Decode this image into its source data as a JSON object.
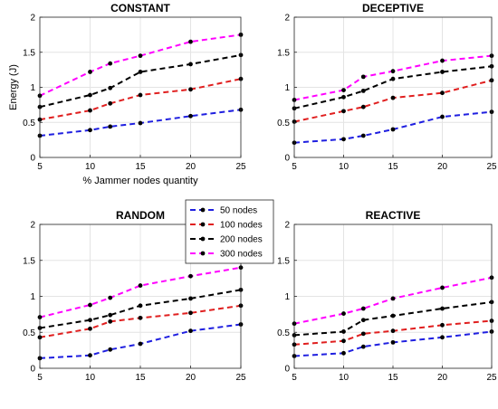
{
  "chart_data": {
    "type": "line",
    "x": [
      5,
      10,
      12,
      15,
      20,
      25
    ],
    "xlim": [
      5,
      25
    ],
    "ylim": [
      0,
      2
    ],
    "xticks": [
      "5",
      "10",
      "15",
      "20",
      "25"
    ],
    "yticks": [
      "0",
      "0.5",
      "1",
      "1.5",
      "2"
    ],
    "grid": true,
    "legend": {
      "placement": "center",
      "entries": [
        "50 nodes",
        "100 nodes",
        "200 nodes",
        "300 nodes"
      ]
    },
    "series_colors": [
      "#1f1fe0",
      "#e01f1f",
      "#000000",
      "#ff00ff"
    ],
    "panels": [
      {
        "title": "CONSTANT",
        "xlabel": "% Jammer nodes quantity",
        "ylabel": "Energy (J)",
        "series": [
          {
            "name": "50 nodes",
            "values": [
              0.31,
              0.39,
              0.44,
              0.49,
              0.59,
              0.68
            ]
          },
          {
            "name": "100 nodes",
            "values": [
              0.54,
              0.67,
              0.77,
              0.89,
              0.97,
              1.12
            ]
          },
          {
            "name": "200 nodes",
            "values": [
              0.72,
              0.89,
              0.99,
              1.22,
              1.33,
              1.46
            ]
          },
          {
            "name": "300 nodes",
            "values": [
              0.88,
              1.22,
              1.34,
              1.45,
              1.65,
              1.75
            ]
          }
        ]
      },
      {
        "title": "DECEPTIVE",
        "xlabel": "",
        "ylabel": "",
        "series": [
          {
            "name": "50 nodes",
            "values": [
              0.21,
              0.26,
              0.31,
              0.4,
              0.58,
              0.65
            ]
          },
          {
            "name": "100 nodes",
            "values": [
              0.51,
              0.66,
              0.72,
              0.85,
              0.92,
              1.1
            ]
          },
          {
            "name": "200 nodes",
            "values": [
              0.7,
              0.86,
              0.95,
              1.12,
              1.22,
              1.3
            ]
          },
          {
            "name": "300 nodes",
            "values": [
              0.82,
              0.96,
              1.15,
              1.23,
              1.38,
              1.45
            ]
          }
        ]
      },
      {
        "title": "RANDOM",
        "xlabel": "",
        "ylabel": "",
        "series": [
          {
            "name": "50 nodes",
            "values": [
              0.14,
              0.18,
              0.26,
              0.34,
              0.52,
              0.61
            ]
          },
          {
            "name": "100 nodes",
            "values": [
              0.43,
              0.55,
              0.65,
              0.7,
              0.77,
              0.87
            ]
          },
          {
            "name": "200 nodes",
            "values": [
              0.56,
              0.67,
              0.74,
              0.87,
              0.97,
              1.09
            ]
          },
          {
            "name": "300 nodes",
            "values": [
              0.71,
              0.88,
              0.98,
              1.15,
              1.28,
              1.4
            ]
          }
        ]
      },
      {
        "title": "REACTIVE",
        "xlabel": "",
        "ylabel": "",
        "series": [
          {
            "name": "50 nodes",
            "values": [
              0.17,
              0.21,
              0.3,
              0.36,
              0.43,
              0.51
            ]
          },
          {
            "name": "100 nodes",
            "values": [
              0.33,
              0.38,
              0.48,
              0.52,
              0.6,
              0.66
            ]
          },
          {
            "name": "200 nodes",
            "values": [
              0.46,
              0.51,
              0.67,
              0.73,
              0.83,
              0.92
            ]
          },
          {
            "name": "300 nodes",
            "values": [
              0.62,
              0.76,
              0.83,
              0.97,
              1.12,
              1.26
            ]
          }
        ]
      }
    ]
  }
}
